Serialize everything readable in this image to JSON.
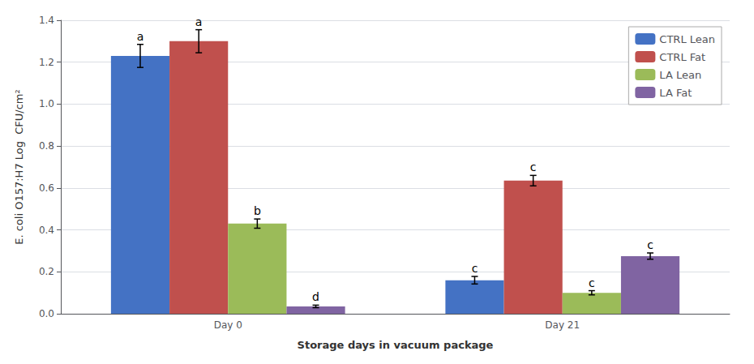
{
  "chart_data": {
    "type": "bar",
    "xlabel": "Storage days in vacuum package",
    "ylabel": "E. coli O157:H7 Log  CFU/cm²",
    "categories": [
      "Day 0",
      "Day 21"
    ],
    "series": [
      {
        "name": "CTRL Lean",
        "color": "#4472C4",
        "values": [
          1.23,
          0.16
        ],
        "errors": [
          0.055,
          0.018
        ],
        "annotations": [
          "a",
          "c"
        ]
      },
      {
        "name": "CTRL Fat",
        "color": "#C0504D",
        "values": [
          1.3,
          0.635
        ],
        "errors": [
          0.055,
          0.025
        ],
        "annotations": [
          "a",
          "c"
        ]
      },
      {
        "name": "LA Lean",
        "color": "#9BBB59",
        "values": [
          0.43,
          0.1
        ],
        "errors": [
          0.022,
          0.01
        ],
        "annotations": [
          "b",
          "c"
        ]
      },
      {
        "name": "LA Fat",
        "color": "#8064A2",
        "values": [
          0.035,
          0.275
        ],
        "errors": [
          0.006,
          0.015
        ],
        "annotations": [
          "d",
          "c"
        ]
      }
    ],
    "ylim": [
      0,
      1.4
    ],
    "yticks": [
      {
        "value": 0,
        "label": "0.0"
      },
      0.2,
      0.4,
      0.6,
      0.8,
      {
        "value": 1,
        "label": "1.0"
      },
      1.2,
      1.4
    ],
    "grid": true,
    "legend": "upper right"
  }
}
